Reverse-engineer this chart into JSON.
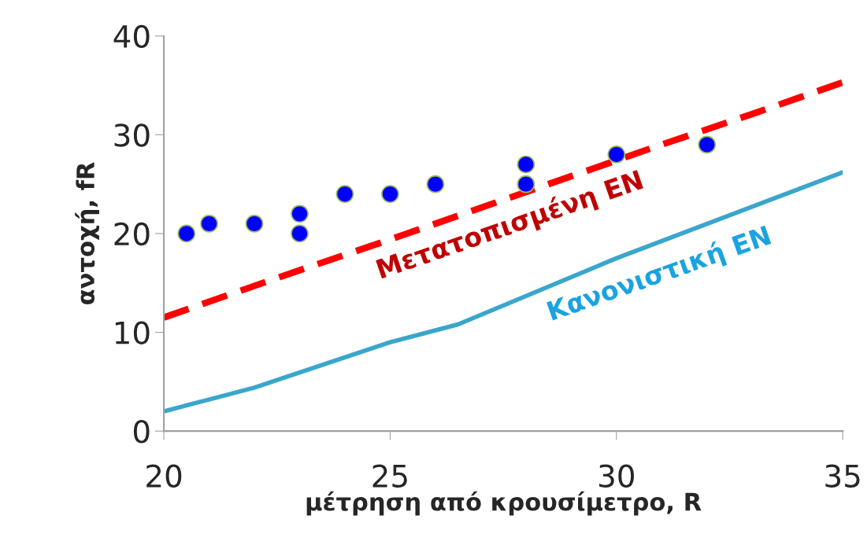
{
  "chart_data": {
    "type": "scatter",
    "xlabel": "μέτρηση από κρουσίμετρο, R",
    "ylabel": "αντοχή, fR",
    "xlim": [
      20,
      35
    ],
    "xticks": [
      20,
      25,
      30,
      35
    ],
    "ylim": [
      0,
      40
    ],
    "yticks": [
      0,
      10,
      20,
      30,
      40
    ],
    "grid": false,
    "legend": false,
    "series": [
      {
        "color": "#0000ff",
        "marker": "circle",
        "x": [
          20.5,
          21,
          22,
          23,
          23,
          24,
          25,
          26,
          28,
          28,
          30,
          32
        ],
        "values": [
          20,
          21,
          21,
          22,
          20,
          24,
          24,
          25,
          27,
          25,
          28,
          29
        ]
      },
      {
        "type": "line",
        "name": "Μετατοπισμένη EN",
        "color": "#ff0000",
        "line_style": "dashed",
        "marker": "none",
        "x": [
          20,
          22.5,
          25,
          27.5,
          31,
          33,
          35
        ],
        "values": [
          11.5,
          15.5,
          19.4,
          23.4,
          29.0,
          32.1,
          35.3
        ]
      },
      {
        "type": "line",
        "name": "Κανονιστική EN",
        "color": "#3aa6cc",
        "line_style": "solid",
        "marker": "none",
        "x": [
          20,
          22,
          25,
          26.5,
          30,
          35
        ],
        "values": [
          2,
          4.4,
          9,
          10.8,
          17.5,
          26.2
        ]
      }
    ]
  }
}
